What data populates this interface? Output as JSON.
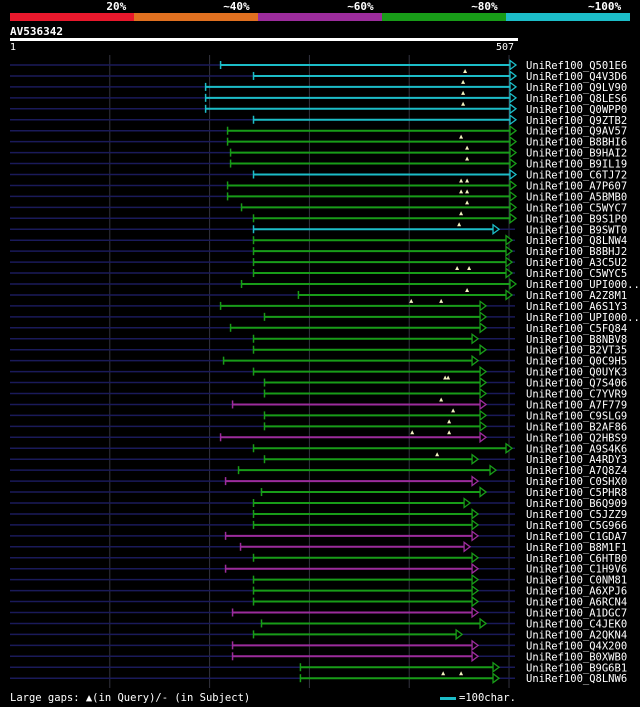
{
  "header": {
    "query_id": "AV536342",
    "ruler_start": "1",
    "ruler_end": "507",
    "identity_bins": [
      {
        "label": "20%",
        "color": "#e8182c"
      },
      {
        "label": "~40%",
        "color": "#e07020"
      },
      {
        "label": "~60%",
        "color": "#9c2c9c"
      },
      {
        "label": "~80%",
        "color": "#189c18"
      },
      {
        "label": "~100%",
        "color": "#1cbdc8"
      }
    ]
  },
  "footer": {
    "gaps_text": "Large gaps: ▲(in Query)/- (in Subject)",
    "scale_text": "=100char."
  },
  "chart_data": {
    "type": "alignment-overview",
    "query_length": 507,
    "hits": [
      {
        "name": "UniRef100_Q501E6",
        "start": 212,
        "end": 507,
        "bin": "~100%",
        "gaps": []
      },
      {
        "name": "UniRef100_Q4V3D6",
        "start": 245,
        "end": 507,
        "bin": "~100%",
        "gaps": [
          457
        ]
      },
      {
        "name": "UniRef100_Q9LV90",
        "start": 197,
        "end": 507,
        "bin": "~100%",
        "gaps": [
          455
        ]
      },
      {
        "name": "UniRef100_Q8LES6",
        "start": 197,
        "end": 507,
        "bin": "~100%",
        "gaps": [
          455
        ]
      },
      {
        "name": "UniRef100_Q0WPP0",
        "start": 197,
        "end": 507,
        "bin": "~100%",
        "gaps": [
          455
        ]
      },
      {
        "name": "UniRef100_Q9ZTB2",
        "start": 245,
        "end": 507,
        "bin": "~100%",
        "gaps": []
      },
      {
        "name": "UniRef100_Q9AV57",
        "start": 219,
        "end": 507,
        "bin": "~80%",
        "gaps": []
      },
      {
        "name": "UniRef100_B8BHI6",
        "start": 219,
        "end": 507,
        "bin": "~80%",
        "gaps": [
          453
        ]
      },
      {
        "name": "UniRef100_B9HAI2",
        "start": 222,
        "end": 507,
        "bin": "~80%",
        "gaps": [
          459
        ]
      },
      {
        "name": "UniRef100_B9IL19",
        "start": 222,
        "end": 507,
        "bin": "~80%",
        "gaps": [
          459
        ]
      },
      {
        "name": "UniRef100_C6TJ72",
        "start": 245,
        "end": 507,
        "bin": "~100%",
        "gaps": []
      },
      {
        "name": "UniRef100_A7P607",
        "start": 219,
        "end": 507,
        "bin": "~80%",
        "gaps": [
          453,
          459
        ]
      },
      {
        "name": "UniRef100_A5BMB0",
        "start": 219,
        "end": 507,
        "bin": "~80%",
        "gaps": [
          453,
          459
        ]
      },
      {
        "name": "UniRef100_C5WYC7",
        "start": 233,
        "end": 507,
        "bin": "~80%",
        "gaps": [
          459
        ]
      },
      {
        "name": "UniRef100_B9S1P0",
        "start": 245,
        "end": 507,
        "bin": "~80%",
        "gaps": [
          453
        ]
      },
      {
        "name": "UniRef100_B9SWT0",
        "start": 245,
        "end": 490,
        "bin": "~100%",
        "gaps": [
          451
        ]
      },
      {
        "name": "UniRef100_Q8LNW4",
        "start": 245,
        "end": 503,
        "bin": "~80%",
        "gaps": []
      },
      {
        "name": "UniRef100_B8BHJ2",
        "start": 245,
        "end": 503,
        "bin": "~80%",
        "gaps": []
      },
      {
        "name": "UniRef100_A3C5U2",
        "start": 245,
        "end": 503,
        "bin": "~80%",
        "gaps": []
      },
      {
        "name": "UniRef100_C5WYC5",
        "start": 245,
        "end": 503,
        "bin": "~80%",
        "gaps": [
          449,
          461
        ]
      },
      {
        "name": "UniRef100_UPI000..",
        "start": 233,
        "end": 507,
        "bin": "~80%",
        "gaps": []
      },
      {
        "name": "UniRef100_A2Z8M1",
        "start": 290,
        "end": 503,
        "bin": "~80%",
        "gaps": [
          459
        ]
      },
      {
        "name": "UniRef100_A6S1Y3",
        "start": 212,
        "end": 477,
        "bin": "~80%",
        "gaps": [
          403,
          433
        ]
      },
      {
        "name": "UniRef100_UPI000..",
        "start": 256,
        "end": 477,
        "bin": "~80%",
        "gaps": []
      },
      {
        "name": "UniRef100_C5FQ84",
        "start": 222,
        "end": 477,
        "bin": "~80%",
        "gaps": []
      },
      {
        "name": "UniRef100_B8NBV8",
        "start": 245,
        "end": 469,
        "bin": "~80%",
        "gaps": []
      },
      {
        "name": "UniRef100_B2VT35",
        "start": 245,
        "end": 477,
        "bin": "~80%",
        "gaps": []
      },
      {
        "name": "UniRef100_Q0C9H5",
        "start": 215,
        "end": 469,
        "bin": "~80%",
        "gaps": []
      },
      {
        "name": "UniRef100_Q0UYK3",
        "start": 245,
        "end": 477,
        "bin": "~80%",
        "gaps": []
      },
      {
        "name": "UniRef100_Q7S406",
        "start": 256,
        "end": 477,
        "bin": "~80%",
        "gaps": [
          437,
          440
        ]
      },
      {
        "name": "UniRef100_C7YVR9",
        "start": 256,
        "end": 477,
        "bin": "~80%",
        "gaps": []
      },
      {
        "name": "UniRef100_A7F779",
        "start": 224,
        "end": 477,
        "bin": "~60%",
        "gaps": [
          433
        ]
      },
      {
        "name": "UniRef100_C9SLG9",
        "start": 256,
        "end": 477,
        "bin": "~80%",
        "gaps": [
          445
        ]
      },
      {
        "name": "UniRef100_B2AF86",
        "start": 256,
        "end": 477,
        "bin": "~80%",
        "gaps": [
          441
        ]
      },
      {
        "name": "UniRef100_Q2HBS9",
        "start": 212,
        "end": 477,
        "bin": "~60%",
        "gaps": [
          404,
          441
        ]
      },
      {
        "name": "UniRef100_A9S4K6",
        "start": 245,
        "end": 503,
        "bin": "~80%",
        "gaps": []
      },
      {
        "name": "UniRef100_A4RDY3",
        "start": 256,
        "end": 469,
        "bin": "~80%",
        "gaps": [
          429
        ]
      },
      {
        "name": "UniRef100_A7Q8Z4",
        "start": 230,
        "end": 487,
        "bin": "~80%",
        "gaps": []
      },
      {
        "name": "UniRef100_C0SHX0",
        "start": 217,
        "end": 469,
        "bin": "~60%",
        "gaps": []
      },
      {
        "name": "UniRef100_C5PHR8",
        "start": 253,
        "end": 477,
        "bin": "~80%",
        "gaps": []
      },
      {
        "name": "UniRef100_B6Q909",
        "start": 245,
        "end": 461,
        "bin": "~80%",
        "gaps": []
      },
      {
        "name": "UniRef100_C5JZZ9",
        "start": 245,
        "end": 469,
        "bin": "~80%",
        "gaps": []
      },
      {
        "name": "UniRef100_C5G966",
        "start": 245,
        "end": 469,
        "bin": "~80%",
        "gaps": []
      },
      {
        "name": "UniRef100_C1GDA7",
        "start": 217,
        "end": 469,
        "bin": "~60%",
        "gaps": []
      },
      {
        "name": "UniRef100_B8M1F1",
        "start": 232,
        "end": 461,
        "bin": "~60%",
        "gaps": []
      },
      {
        "name": "UniRef100_C6HTB0",
        "start": 245,
        "end": 469,
        "bin": "~80%",
        "gaps": []
      },
      {
        "name": "UniRef100_C1H9V6",
        "start": 217,
        "end": 469,
        "bin": "~60%",
        "gaps": []
      },
      {
        "name": "UniRef100_C0NM81",
        "start": 245,
        "end": 469,
        "bin": "~80%",
        "gaps": []
      },
      {
        "name": "UniRef100_A6XPJ6",
        "start": 245,
        "end": 469,
        "bin": "~80%",
        "gaps": []
      },
      {
        "name": "UniRef100_A6RCN4",
        "start": 245,
        "end": 469,
        "bin": "~80%",
        "gaps": []
      },
      {
        "name": "UniRef100_A1DGC7",
        "start": 224,
        "end": 469,
        "bin": "~60%",
        "gaps": []
      },
      {
        "name": "UniRef100_C4JEK0",
        "start": 253,
        "end": 477,
        "bin": "~80%",
        "gaps": []
      },
      {
        "name": "UniRef100_A2QKN4",
        "start": 245,
        "end": 453,
        "bin": "~80%",
        "gaps": []
      },
      {
        "name": "UniRef100_Q4X200",
        "start": 224,
        "end": 469,
        "bin": "~60%",
        "gaps": []
      },
      {
        "name": "UniRef100_B0XWB0",
        "start": 224,
        "end": 469,
        "bin": "~60%",
        "gaps": []
      },
      {
        "name": "UniRef100_B9G6B1",
        "start": 292,
        "end": 490,
        "bin": "~80%",
        "gaps": []
      },
      {
        "name": "UniRef100_Q8LNW6",
        "start": 292,
        "end": 490,
        "bin": "~80%",
        "gaps": [
          435,
          453
        ]
      }
    ]
  }
}
